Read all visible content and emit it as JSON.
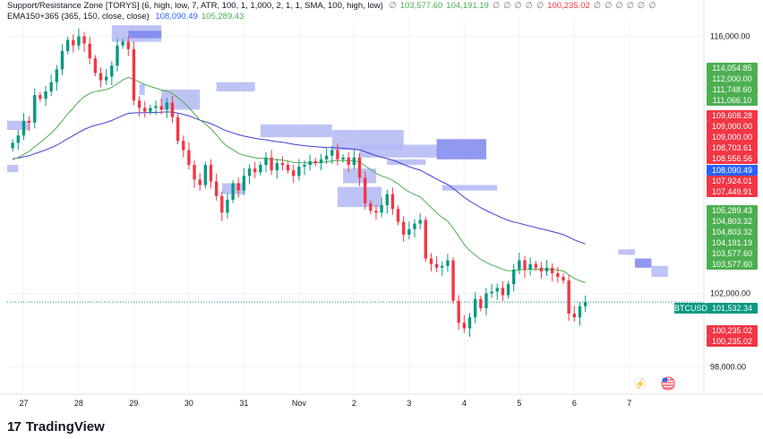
{
  "legend": {
    "line1": {
      "label": "Support/Resistance Zone [TORYS] (6, high, low, 7, ATR, 100, 1, 1,000, 2, 1, 1, SMA, 100, high, low)",
      "values": [
        {
          "text": "∅",
          "color": "#787b86"
        },
        {
          "text": "103,577.60",
          "color": "#4caf50"
        },
        {
          "text": "104,191.19",
          "color": "#4caf50"
        },
        {
          "text": "∅",
          "color": "#787b86"
        },
        {
          "text": "∅",
          "color": "#787b86"
        },
        {
          "text": "∅",
          "color": "#787b86"
        },
        {
          "text": "∅",
          "color": "#787b86"
        },
        {
          "text": "∅",
          "color": "#787b86"
        },
        {
          "text": "100,235.02",
          "color": "#f23645"
        },
        {
          "text": "∅",
          "color": "#787b86"
        },
        {
          "text": "∅",
          "color": "#787b86"
        },
        {
          "text": "∅",
          "color": "#787b86"
        },
        {
          "text": "∅",
          "color": "#787b86"
        },
        {
          "text": "∅",
          "color": "#787b86"
        },
        {
          "text": "∅",
          "color": "#787b86"
        }
      ]
    },
    "line2": {
      "label": "EMA150+365 (365, 150, close, close)",
      "values": [
        {
          "text": "108,090.49",
          "color": "#2962ff"
        },
        {
          "text": "105,289.43",
          "color": "#4caf50"
        }
      ]
    }
  },
  "logo_text": "TradingView",
  "logo_mark": "17",
  "icons": [
    "tv-logo-icon",
    "lightning-icon",
    "us-flag-icon"
  ],
  "colors": {
    "up": "#089981",
    "down": "#f23645",
    "ema_long": "#3f3fd6",
    "ema_short": "#4caf50",
    "zone": "#b3b8f5",
    "zone_strong": "#7d86ec",
    "price_line": "#089981"
  },
  "price_tags": [
    {
      "text": "114,054.85",
      "value": 114054.85,
      "bg": "#4caf50"
    },
    {
      "text": "112,000.00",
      "value": 112000.0,
      "bg": "#4caf50"
    },
    {
      "text": "111,748.60",
      "value": 111748.6,
      "bg": "#4caf50"
    },
    {
      "text": "111,066.10",
      "value": 111066.1,
      "bg": "#4caf50"
    },
    {
      "text": "109,608.28",
      "value": 109608.28,
      "bg": "#f23645"
    },
    {
      "text": "109,000.00",
      "value": 109000.0,
      "bg": "#f23645"
    },
    {
      "text": "109,000.00",
      "value": 109000.0,
      "bg": "#f23645"
    },
    {
      "text": "108,703.61",
      "value": 108703.61,
      "bg": "#f23645"
    },
    {
      "text": "108,556.56",
      "value": 108556.56,
      "bg": "#f23645"
    },
    {
      "text": "108,090.49",
      "value": 108090.49,
      "bg": "#2962ff"
    },
    {
      "text": "107,924.01",
      "value": 107924.01,
      "bg": "#f23645"
    },
    {
      "text": "107,449.91",
      "value": 107449.91,
      "bg": "#f23645"
    },
    {
      "text": "105,289.43",
      "value": 105289.43,
      "bg": "#4caf50"
    },
    {
      "text": "104,803.32",
      "value": 104803.32,
      "bg": "#4caf50"
    },
    {
      "text": "104,803.32",
      "value": 104803.32,
      "bg": "#4caf50"
    },
    {
      "text": "104,191.19",
      "value": 104191.19,
      "bg": "#4caf50"
    },
    {
      "text": "103,577.60",
      "value": 103577.6,
      "bg": "#4caf50"
    },
    {
      "text": "103,577.60",
      "value": 103577.6,
      "bg": "#4caf50"
    },
    {
      "text": "101,532.34",
      "value": 101532.34,
      "bg": "#089981"
    },
    {
      "text": "100,235.02",
      "value": 100235.02,
      "bg": "#f23645"
    },
    {
      "text": "100,235.02",
      "value": 100235.02,
      "bg": "#f23645"
    }
  ],
  "symbol_tag": {
    "text": "BTCUSD",
    "bg": "#089981"
  },
  "chart_data": {
    "type": "candlestick",
    "symbol": "BTCUSD",
    "last_price": 101532.34,
    "ylim": [
      97000,
      117000
    ],
    "y_ticks": [
      {
        "value": 116000,
        "label": "116,000.00"
      },
      {
        "value": 102000,
        "label": "102,000.00"
      },
      {
        "value": 98000,
        "label": "98,000.00"
      }
    ],
    "x_ticks": [
      {
        "x": 2,
        "label": "27"
      },
      {
        "x": 12,
        "label": "28"
      },
      {
        "x": 22,
        "label": "29"
      },
      {
        "x": 32,
        "label": "30"
      },
      {
        "x": 42,
        "label": "31"
      },
      {
        "x": 52,
        "label": "Nov"
      },
      {
        "x": 62,
        "label": "2"
      },
      {
        "x": 72,
        "label": "3"
      },
      {
        "x": 82,
        "label": "4"
      },
      {
        "x": 92,
        "label": "5"
      },
      {
        "x": 102,
        "label": "6"
      },
      {
        "x": 112,
        "label": "7"
      }
    ],
    "x_range": [
      -1,
      120
    ],
    "closes": [
      110200,
      110600,
      111400,
      111300,
      112800,
      112600,
      113000,
      113500,
      114200,
      115200,
      115800,
      115500,
      116000,
      115600,
      114800,
      114000,
      113600,
      113800,
      114400,
      115500,
      115700,
      115300,
      112500,
      112100,
      111900,
      112100,
      112200,
      112000,
      112400,
      111600,
      110300,
      109800,
      109000,
      108200,
      107900,
      109000,
      108100,
      107300,
      106400,
      107100,
      108000,
      107600,
      108400,
      108800,
      108600,
      109000,
      109400,
      108700,
      109100,
      109000,
      108700,
      108400,
      108900,
      109000,
      109200,
      109100,
      109300,
      109500,
      109800,
      109300,
      109400,
      109000,
      109400,
      108300,
      106900,
      106500,
      106400,
      106800,
      107400,
      106600,
      105900,
      105200,
      105500,
      105800,
      106000,
      103900,
      103600,
      103400,
      103500,
      103800,
      101600,
      100400,
      100100,
      100700,
      101700,
      101200,
      102000,
      102100,
      102300,
      101900,
      102500,
      103300,
      103800,
      103300,
      103600,
      103400,
      103200,
      103400,
      103100,
      102900,
      102700,
      100900,
      100700,
      101300,
      101532
    ]
  }
}
